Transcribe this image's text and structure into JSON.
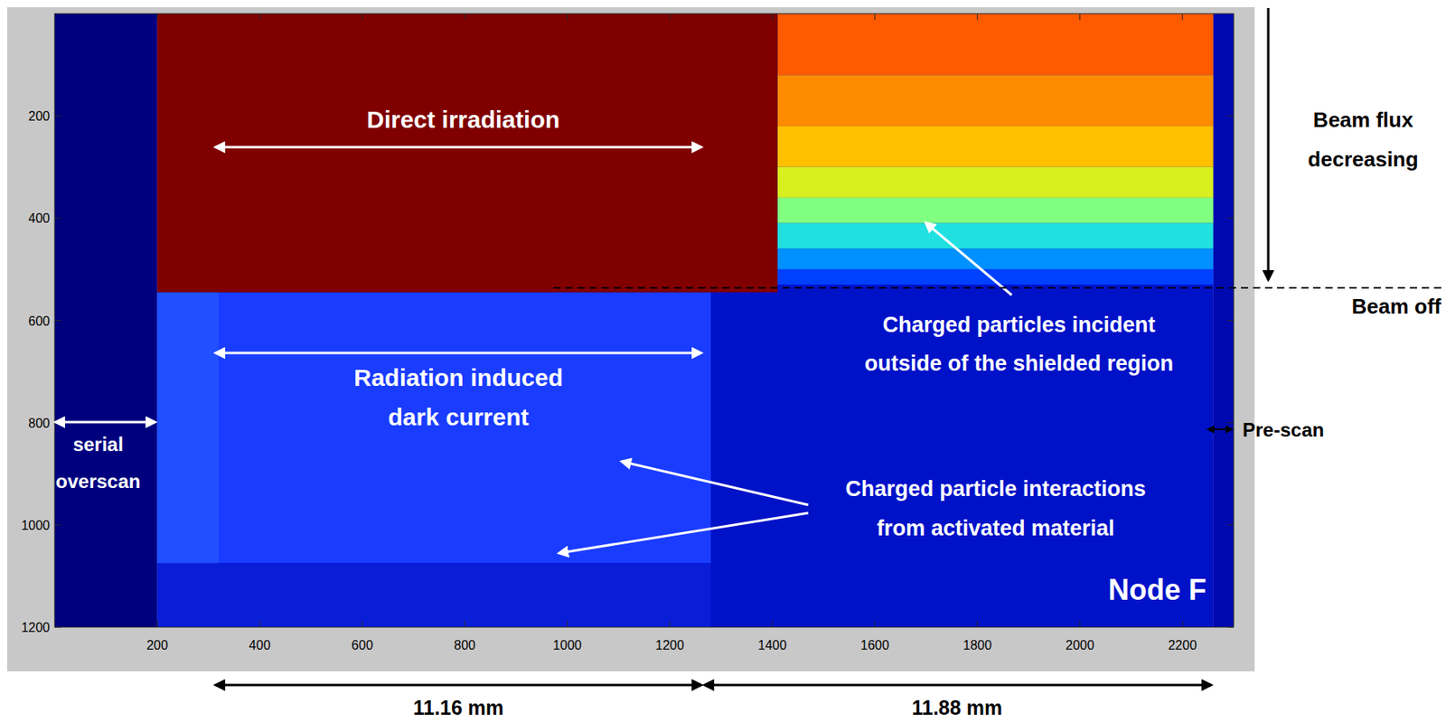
{
  "chart_data": {
    "type": "heatmap",
    "xlim": [
      0,
      2300
    ],
    "xticks": [
      200,
      400,
      600,
      800,
      1000,
      1200,
      1400,
      1600,
      1800,
      2000,
      2200
    ],
    "ylim": [
      0,
      1200
    ],
    "yticks": [
      200,
      400,
      600,
      800,
      1000,
      1200
    ],
    "regions": [
      {
        "x": [
          0,
          200
        ],
        "y": [
          0,
          1200
        ],
        "color": "#00007f"
      },
      {
        "x": [
          200,
          2260
        ],
        "y": [
          0,
          1200
        ],
        "color": "#0010c4"
      },
      {
        "x": [
          2260,
          2300
        ],
        "y": [
          0,
          1200
        ],
        "color": "#0008b0"
      },
      {
        "x": [
          1280,
          2260
        ],
        "y": [
          530,
          1200
        ],
        "color": "#0012c8"
      },
      {
        "x": [
          200,
          1280
        ],
        "y": [
          545,
          1075
        ],
        "color": "#1a3cff"
      },
      {
        "x": [
          200,
          320
        ],
        "y": [
          545,
          1075
        ],
        "color": "#2050ff"
      },
      {
        "x": [
          200,
          1280
        ],
        "y": [
          1075,
          1200
        ],
        "color": "#0a1ed8"
      },
      {
        "x": [
          1410,
          2260
        ],
        "y": [
          0,
          120
        ],
        "color": "#ff5a00"
      },
      {
        "x": [
          1410,
          2260
        ],
        "y": [
          120,
          220
        ],
        "color": "#ff8c00"
      },
      {
        "x": [
          1410,
          2260
        ],
        "y": [
          220,
          300
        ],
        "color": "#ffc000"
      },
      {
        "x": [
          1410,
          2260
        ],
        "y": [
          300,
          360
        ],
        "color": "#d8f020"
      },
      {
        "x": [
          1410,
          2260
        ],
        "y": [
          360,
          410
        ],
        "color": "#80ff80"
      },
      {
        "x": [
          1410,
          2260
        ],
        "y": [
          410,
          460
        ],
        "color": "#20e0e0"
      },
      {
        "x": [
          1410,
          2260
        ],
        "y": [
          460,
          500
        ],
        "color": "#0090ff"
      },
      {
        "x": [
          1410,
          2260
        ],
        "y": [
          500,
          530
        ],
        "color": "#0040ff"
      },
      {
        "x": [
          200,
          1410
        ],
        "y": [
          0,
          545
        ],
        "color": "#800000"
      }
    ],
    "annotations": [
      [
        "Direct irradiation"
      ],
      [
        "Radiation induced",
        "dark current"
      ],
      [
        "Charged particles incident",
        "outside of the shielded region"
      ],
      [
        "Charged particle interactions",
        "from activated material"
      ],
      [
        "serial",
        "overscan"
      ],
      [
        "Node F"
      ],
      [
        "Beam flux",
        "decreasing"
      ],
      [
        "Beam off"
      ],
      [
        "Pre-scan"
      ],
      [
        "11.16 mm"
      ],
      [
        "11.88 mm"
      ]
    ]
  }
}
